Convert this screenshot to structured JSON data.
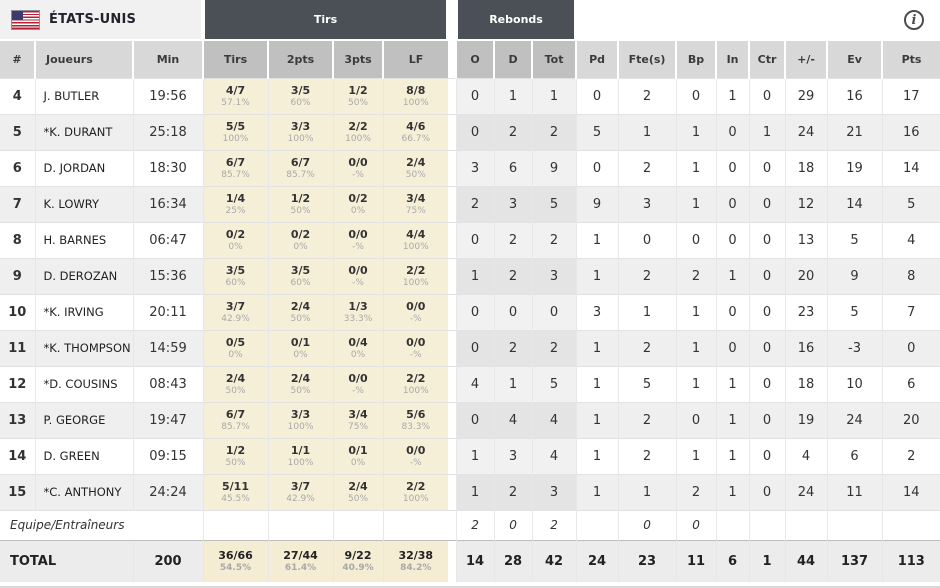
{
  "team": {
    "name": "ÉTATS-UNIS"
  },
  "icons": {
    "info": "i",
    "flag": "us-flag"
  },
  "header": {
    "groups": {
      "tirs": "Tirs",
      "rebonds": "Rebonds"
    },
    "columns": {
      "num": "#",
      "player": "Joueurs",
      "min": "Min",
      "tirs": "Tirs",
      "p2": "2pts",
      "p3": "3pts",
      "lf": "LF",
      "o": "O",
      "d": "D",
      "tot": "Tot",
      "pd": "Pd",
      "fte": "Fte(s)",
      "bp": "Bp",
      "in": "In",
      "ctr": "Ctr",
      "pm": "+/-",
      "ev": "Ev",
      "pts": "Pts"
    }
  },
  "players": [
    {
      "num": "4",
      "name": "J. BUTLER",
      "min": "19:56",
      "shots": [
        [
          "4/7",
          "57.1%"
        ],
        [
          "3/5",
          "60%"
        ],
        [
          "1/2",
          "50%"
        ],
        [
          "8/8",
          "100%"
        ]
      ],
      "stats": [
        "0",
        "1",
        "1",
        "0",
        "2",
        "0",
        "1",
        "0",
        "29",
        "16",
        "17"
      ]
    },
    {
      "num": "5",
      "name": "*K. DURANT",
      "min": "25:18",
      "shots": [
        [
          "5/5",
          "100%"
        ],
        [
          "3/3",
          "100%"
        ],
        [
          "2/2",
          "100%"
        ],
        [
          "4/6",
          "66.7%"
        ]
      ],
      "stats": [
        "0",
        "2",
        "2",
        "5",
        "1",
        "1",
        "0",
        "1",
        "24",
        "21",
        "16"
      ]
    },
    {
      "num": "6",
      "name": "D. JORDAN",
      "min": "18:30",
      "shots": [
        [
          "6/7",
          "85.7%"
        ],
        [
          "6/7",
          "85.7%"
        ],
        [
          "0/0",
          "-%"
        ],
        [
          "2/4",
          "50%"
        ]
      ],
      "stats": [
        "3",
        "6",
        "9",
        "0",
        "2",
        "1",
        "0",
        "0",
        "18",
        "19",
        "14"
      ]
    },
    {
      "num": "7",
      "name": "K. LOWRY",
      "min": "16:34",
      "shots": [
        [
          "1/4",
          "25%"
        ],
        [
          "1/2",
          "50%"
        ],
        [
          "0/2",
          "0%"
        ],
        [
          "3/4",
          "75%"
        ]
      ],
      "stats": [
        "2",
        "3",
        "5",
        "9",
        "3",
        "1",
        "0",
        "0",
        "12",
        "14",
        "5"
      ]
    },
    {
      "num": "8",
      "name": "H. BARNES",
      "min": "06:47",
      "shots": [
        [
          "0/2",
          "0%"
        ],
        [
          "0/2",
          "0%"
        ],
        [
          "0/0",
          "-%"
        ],
        [
          "4/4",
          "100%"
        ]
      ],
      "stats": [
        "0",
        "2",
        "2",
        "1",
        "0",
        "0",
        "0",
        "0",
        "13",
        "5",
        "4"
      ]
    },
    {
      "num": "9",
      "name": "D. DEROZAN",
      "min": "15:36",
      "shots": [
        [
          "3/5",
          "60%"
        ],
        [
          "3/5",
          "60%"
        ],
        [
          "0/0",
          "-%"
        ],
        [
          "2/2",
          "100%"
        ]
      ],
      "stats": [
        "1",
        "2",
        "3",
        "1",
        "2",
        "2",
        "1",
        "0",
        "20",
        "9",
        "8"
      ]
    },
    {
      "num": "10",
      "name": "*K. IRVING",
      "min": "20:11",
      "shots": [
        [
          "3/7",
          "42.9%"
        ],
        [
          "2/4",
          "50%"
        ],
        [
          "1/3",
          "33.3%"
        ],
        [
          "0/0",
          "-%"
        ]
      ],
      "stats": [
        "0",
        "0",
        "0",
        "3",
        "1",
        "1",
        "0",
        "0",
        "23",
        "5",
        "7"
      ]
    },
    {
      "num": "11",
      "name": "*K. THOMPSON",
      "min": "14:59",
      "shots": [
        [
          "0/5",
          "0%"
        ],
        [
          "0/1",
          "0%"
        ],
        [
          "0/4",
          "0%"
        ],
        [
          "0/0",
          "-%"
        ]
      ],
      "stats": [
        "0",
        "2",
        "2",
        "1",
        "2",
        "1",
        "0",
        "0",
        "16",
        "-3",
        "0"
      ]
    },
    {
      "num": "12",
      "name": "*D. COUSINS",
      "min": "08:43",
      "shots": [
        [
          "2/4",
          "50%"
        ],
        [
          "2/4",
          "50%"
        ],
        [
          "0/0",
          "-%"
        ],
        [
          "2/2",
          "100%"
        ]
      ],
      "stats": [
        "4",
        "1",
        "5",
        "1",
        "5",
        "1",
        "1",
        "0",
        "18",
        "10",
        "6"
      ]
    },
    {
      "num": "13",
      "name": "P. GEORGE",
      "min": "19:47",
      "shots": [
        [
          "6/7",
          "85.7%"
        ],
        [
          "3/3",
          "100%"
        ],
        [
          "3/4",
          "75%"
        ],
        [
          "5/6",
          "83.3%"
        ]
      ],
      "stats": [
        "0",
        "4",
        "4",
        "1",
        "2",
        "0",
        "1",
        "0",
        "19",
        "24",
        "20"
      ]
    },
    {
      "num": "14",
      "name": "D. GREEN",
      "min": "09:15",
      "shots": [
        [
          "1/2",
          "50%"
        ],
        [
          "1/1",
          "100%"
        ],
        [
          "0/1",
          "0%"
        ],
        [
          "0/0",
          "-%"
        ]
      ],
      "stats": [
        "1",
        "3",
        "4",
        "1",
        "2",
        "1",
        "1",
        "0",
        "4",
        "6",
        "2"
      ]
    },
    {
      "num": "15",
      "name": "*C. ANTHONY",
      "min": "24:24",
      "shots": [
        [
          "5/11",
          "45.5%"
        ],
        [
          "3/7",
          "42.9%"
        ],
        [
          "2/4",
          "50%"
        ],
        [
          "2/2",
          "100%"
        ]
      ],
      "stats": [
        "1",
        "2",
        "3",
        "1",
        "1",
        "2",
        "1",
        "0",
        "24",
        "11",
        "14"
      ]
    }
  ],
  "team_row": {
    "label": "Equipe/Entraîneurs",
    "stats": [
      "2",
      "0",
      "2",
      "",
      "0",
      "0",
      "",
      "",
      "",
      "",
      ""
    ]
  },
  "total_row": {
    "label": "TOTAL",
    "min": "200",
    "shots": [
      [
        "36/66",
        "54.5%"
      ],
      [
        "27/44",
        "61.4%"
      ],
      [
        "9/22",
        "40.9%"
      ],
      [
        "32/38",
        "84.2%"
      ]
    ],
    "stats": [
      "14",
      "28",
      "42",
      "24",
      "23",
      "11",
      "6",
      "1",
      "44",
      "137",
      "113"
    ]
  },
  "colors": {
    "group_header_bg": "#4a5056",
    "shots_col_bg": "#f6efd8",
    "subheader_bg": "#d8d8d8",
    "subheader_group_bg": "#c0c0c0",
    "stripe_bg": "#efefef",
    "total_bg": "#ececec"
  }
}
